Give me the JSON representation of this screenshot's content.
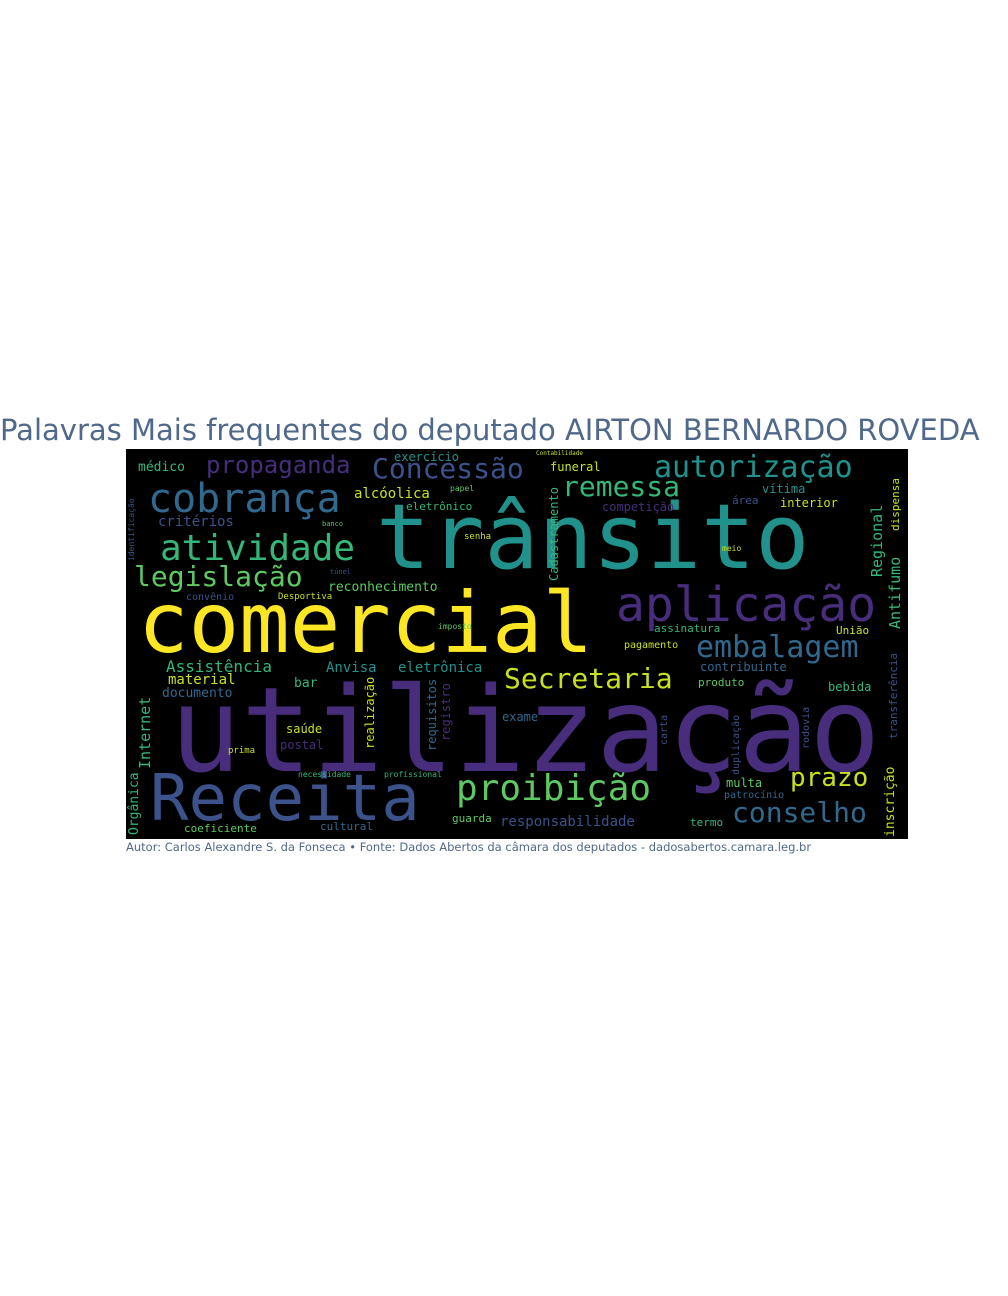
{
  "title": "Palavras Mais frequentes do deputado AIRTON BERNARDO ROVEDA",
  "credit": "Autor: Carlos Alexandre S. da Fonseca • Fonte: Dados Abertos da câmara dos deputados - dadosabertos.camara.leg.br",
  "colors": {
    "background": "#000000",
    "title": "#50698a",
    "yellow": "#fde725",
    "green": "#5ec962",
    "teal": "#21918c",
    "blue": "#3b528b",
    "purple": "#472d7b"
  },
  "words": [
    {
      "text": "utilização",
      "color": "#472d7b"
    },
    {
      "text": "comercial",
      "color": "#fde725"
    },
    {
      "text": "trânsito",
      "color": "#21918c"
    },
    {
      "text": "Receita",
      "color": "#3b528b"
    },
    {
      "text": "aplicação",
      "color": "#472d7b"
    },
    {
      "text": "cobrança",
      "color": "#31688e"
    },
    {
      "text": "atividade",
      "color": "#35b779"
    },
    {
      "text": "proibição",
      "color": "#5ec962"
    },
    {
      "text": "embalagem",
      "color": "#31688e"
    },
    {
      "text": "autorização",
      "color": "#21918c"
    },
    {
      "text": "Concessão",
      "color": "#3b528b"
    },
    {
      "text": "legislação",
      "color": "#5ec962"
    },
    {
      "text": "Secretaria",
      "color": "#c8e020"
    },
    {
      "text": "remessa",
      "color": "#35b779"
    },
    {
      "text": "propaganda",
      "color": "#472d7b"
    },
    {
      "text": "conselho",
      "color": "#31688e"
    },
    {
      "text": "prazo",
      "color": "#c8e020"
    },
    {
      "text": "Assistência",
      "color": "#35b779"
    },
    {
      "text": "Anvisa",
      "color": "#21918c"
    },
    {
      "text": "eletrônica",
      "color": "#21918c"
    },
    {
      "text": "responsabilidade",
      "color": "#3b528b"
    },
    {
      "text": "critérios",
      "color": "#3b528b"
    },
    {
      "text": "reconhecimento",
      "color": "#5ec962"
    },
    {
      "text": "alcóolica",
      "color": "#c8e020"
    },
    {
      "text": "médico",
      "color": "#35b779"
    },
    {
      "text": "exercício",
      "color": "#21918c"
    },
    {
      "text": "funeral",
      "color": "#c8e020"
    },
    {
      "text": "eletrônico",
      "color": "#35b779"
    },
    {
      "text": "material",
      "color": "#c8e020"
    },
    {
      "text": "documento",
      "color": "#31688e"
    },
    {
      "text": "bar",
      "color": "#35b779"
    },
    {
      "text": "saúde",
      "color": "#c8e020"
    },
    {
      "text": "postal",
      "color": "#472d7b"
    },
    {
      "text": "exame",
      "color": "#31688e"
    },
    {
      "text": "guarda",
      "color": "#5ec962"
    },
    {
      "text": "coeficiente",
      "color": "#5ec962"
    },
    {
      "text": "cultural",
      "color": "#31688e"
    },
    {
      "text": "termo",
      "color": "#35b779"
    },
    {
      "text": "multa",
      "color": "#5ec962"
    },
    {
      "text": "patrocínio",
      "color": "#31688e"
    },
    {
      "text": "bebida",
      "color": "#35b779"
    },
    {
      "text": "produto",
      "color": "#5ec962"
    },
    {
      "text": "contribuinte",
      "color": "#31688e"
    },
    {
      "text": "pagamento",
      "color": "#c8e020"
    },
    {
      "text": "assinatura",
      "color": "#35b779"
    },
    {
      "text": "União",
      "color": "#c8e020"
    },
    {
      "text": "competição",
      "color": "#472d7b"
    },
    {
      "text": "vítima",
      "color": "#21918c"
    },
    {
      "text": "interior",
      "color": "#c8e020"
    },
    {
      "text": "área",
      "color": "#3b528b"
    },
    {
      "text": "senha",
      "color": "#c8e020"
    },
    {
      "text": "convênio",
      "color": "#3b528b"
    },
    {
      "text": "Desportiva",
      "color": "#c8e020"
    },
    {
      "text": "imposto",
      "color": "#5ec962"
    },
    {
      "text": "profissional",
      "color": "#35b779"
    },
    {
      "text": "necessidade",
      "color": "#35b779"
    },
    {
      "text": "prima",
      "color": "#c8e020"
    },
    {
      "text": "papel",
      "color": "#5ec962"
    },
    {
      "text": "Contabilidade",
      "color": "#c8e020"
    },
    {
      "text": "banco",
      "color": "#5ec962"
    },
    {
      "text": "túnel",
      "color": "#3b528b"
    },
    {
      "text": "meio",
      "color": "#c8e020"
    },
    {
      "text": "Internet",
      "color": "#35b779",
      "vertical": true
    },
    {
      "text": "Orgânica",
      "color": "#35b779",
      "vertical": true
    },
    {
      "text": "Regional",
      "color": "#35b779",
      "vertical": true
    },
    {
      "text": "Antifumo",
      "color": "#35b779",
      "vertical": true
    },
    {
      "text": "transferência",
      "color": "#3b528b",
      "vertical": true
    },
    {
      "text": "inscrição",
      "color": "#c8e020",
      "vertical": true
    },
    {
      "text": "dispensa",
      "color": "#c8e020",
      "vertical": true
    },
    {
      "text": "Cadastramento",
      "color": "#35b779",
      "vertical": true
    },
    {
      "text": "requisitos",
      "color": "#31688e",
      "vertical": true
    },
    {
      "text": "registro",
      "color": "#472d7b",
      "vertical": true
    },
    {
      "text": "realização",
      "color": "#c8e020",
      "vertical": true
    },
    {
      "text": "duplicação",
      "color": "#3b528b",
      "vertical": true
    },
    {
      "text": "rodovia",
      "color": "#3b528b",
      "vertical": true
    },
    {
      "text": "carta",
      "color": "#3b528b",
      "vertical": true
    },
    {
      "text": "identificação",
      "color": "#3b528b",
      "vertical": true
    }
  ]
}
